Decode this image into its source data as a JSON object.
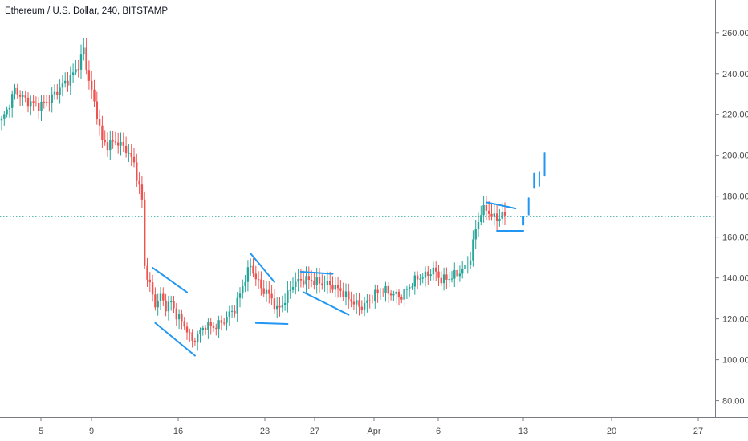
{
  "chart_data": {
    "type": "candlestick",
    "title": "Ethereum / U.S. Dollar, 240, BITSTAMP",
    "ylim": [
      72,
      276
    ],
    "y_ticks": [
      "80.00",
      "100.00",
      "120.00",
      "140.00",
      "160.00",
      "180.00",
      "200.00",
      "220.00",
      "240.00",
      "260.00"
    ],
    "x_ticks": [
      "5",
      "9",
      "16",
      "23",
      "27",
      "Apr",
      "6",
      "13",
      "20",
      "27"
    ],
    "horizontal_line": {
      "value": 170,
      "style": "dotted",
      "color": "#26a69a"
    },
    "colors": {
      "up": "#26a69a",
      "down": "#ef5350",
      "drawing": "#2196f3",
      "axis": "#787b86"
    },
    "price_path": [
      [
        0,
        217
      ],
      [
        2,
        222
      ],
      [
        5,
        232
      ],
      [
        9,
        227
      ],
      [
        14,
        224
      ],
      [
        18,
        227
      ],
      [
        22,
        233
      ],
      [
        26,
        238
      ],
      [
        29,
        244
      ],
      [
        31,
        252
      ],
      [
        32,
        243
      ],
      [
        34,
        231
      ],
      [
        36,
        220
      ],
      [
        38,
        207
      ],
      [
        40,
        205
      ],
      [
        43,
        207
      ],
      [
        47,
        203
      ],
      [
        50,
        196
      ],
      [
        53,
        178
      ],
      [
        54,
        146
      ],
      [
        56,
        136
      ],
      [
        58,
        127
      ],
      [
        60,
        131
      ],
      [
        62,
        126
      ],
      [
        64,
        128
      ],
      [
        66,
        122
      ],
      [
        69,
        117
      ],
      [
        72,
        109
      ],
      [
        74,
        112
      ],
      [
        77,
        117
      ],
      [
        80,
        116
      ],
      [
        83,
        118
      ],
      [
        85,
        121
      ],
      [
        88,
        125
      ],
      [
        90,
        132
      ],
      [
        92,
        140
      ],
      [
        94,
        146
      ],
      [
        96,
        140
      ],
      [
        98,
        135
      ],
      [
        100,
        133
      ],
      [
        102,
        130
      ],
      [
        104,
        124
      ],
      [
        107,
        129
      ],
      [
        110,
        137
      ],
      [
        113,
        139
      ],
      [
        116,
        139
      ],
      [
        119,
        138
      ],
      [
        122,
        137
      ],
      [
        124,
        137
      ],
      [
        126,
        135
      ],
      [
        128,
        134
      ],
      [
        130,
        131
      ],
      [
        132,
        129
      ],
      [
        134,
        127
      ],
      [
        136,
        126
      ],
      [
        138,
        128
      ],
      [
        141,
        132
      ],
      [
        144,
        134
      ],
      [
        148,
        132
      ],
      [
        151,
        131
      ],
      [
        154,
        136
      ],
      [
        157,
        140
      ],
      [
        160,
        141
      ],
      [
        163,
        144
      ],
      [
        166,
        139
      ],
      [
        169,
        140
      ],
      [
        172,
        142
      ],
      [
        175,
        145
      ],
      [
        177,
        150
      ],
      [
        179,
        164
      ],
      [
        181,
        172
      ],
      [
        183,
        174
      ],
      [
        185,
        170
      ],
      [
        187,
        169
      ],
      [
        189,
        171
      ],
      [
        190,
        170
      ]
    ],
    "drawings": [
      {
        "name": "drawing-flag-1",
        "segments": [
          [
            [
              57,
              145
            ],
            [
              70,
              133
            ]
          ],
          [
            [
              58,
              118
            ],
            [
              73,
              102
            ]
          ]
        ]
      },
      {
        "name": "drawing-flag-2",
        "segments": [
          [
            [
              94,
              152
            ],
            [
              103,
              138
            ]
          ],
          [
            [
              96,
              118
            ],
            [
              108,
              117.5
            ]
          ]
        ]
      },
      {
        "name": "drawing-flag-3",
        "segments": [
          [
            [
              113,
              143
            ],
            [
              125,
              142
            ]
          ],
          [
            [
              114,
              133
            ],
            [
              131,
              122
            ]
          ]
        ]
      },
      {
        "name": "drawing-flag-4",
        "segments": [
          [
            [
              183,
              177
            ],
            [
              194,
              174
            ]
          ],
          [
            [
              187,
              163
            ],
            [
              197,
              163
            ]
          ]
        ]
      },
      {
        "name": "drawing-bars",
        "segments": [
          [
            [
              197,
              166
            ],
            [
              197,
              170
            ]
          ],
          [
            [
              199,
              171
            ],
            [
              199,
              179
            ]
          ],
          [
            [
              201,
              184
            ],
            [
              201,
              191
            ]
          ],
          [
            [
              203,
              185
            ],
            [
              203,
              192
            ]
          ],
          [
            [
              205,
              190
            ],
            [
              205,
              201
            ]
          ]
        ]
      }
    ]
  }
}
